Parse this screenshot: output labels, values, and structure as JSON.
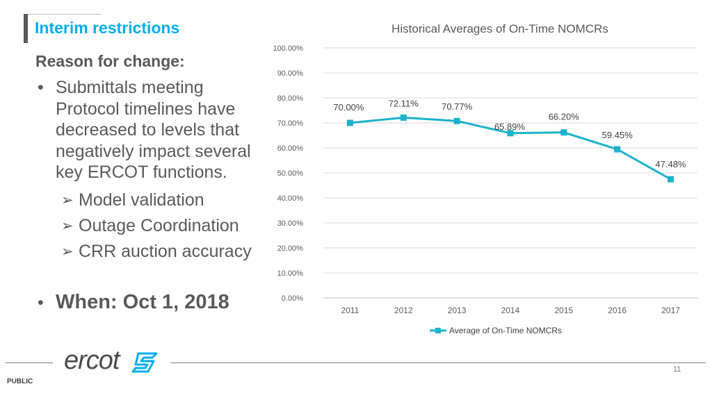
{
  "slide": {
    "title": "Interim restrictions",
    "reason_heading": "Reason for change:",
    "bullet_marker": "•",
    "sub_marker": "➢",
    "bullet_1": "Submittals meeting Protocol timelines have decreased to levels that negatively impact several key ERCOT functions.",
    "sub_bullets": [
      "Model validation",
      "Outage Coordination",
      "CRR auction accuracy"
    ],
    "bullet_2": "When:  Oct 1, 2018"
  },
  "footer": {
    "logo_text": "ercot",
    "page_number": "11",
    "classification": "PUBLIC"
  },
  "colors": {
    "accent": "#00aeef",
    "series": "#1ab2cc",
    "text": "#595959"
  },
  "chart_data": {
    "type": "line",
    "title": "Historical Averages of On-Time NOMCRs",
    "x": [
      "2011",
      "2012",
      "2013",
      "2014",
      "2015",
      "2016",
      "2017"
    ],
    "series": [
      {
        "name": "Average of On-Time NOMCRs",
        "values": [
          70.0,
          72.11,
          70.77,
          65.89,
          66.2,
          59.45,
          47.48
        ],
        "labels": [
          "70.00%",
          "72.11%",
          "70.77%",
          "65.89%",
          "66.20%",
          "59.45%",
          "47.48%"
        ]
      }
    ],
    "yticks": [
      "0.00%",
      "10.00%",
      "20.00%",
      "30.00%",
      "40.00%",
      "50.00%",
      "60.00%",
      "70.00%",
      "80.00%",
      "90.00%",
      "100.00%"
    ],
    "ylim": [
      0,
      100
    ],
    "grid": true,
    "legend": "bottom"
  }
}
